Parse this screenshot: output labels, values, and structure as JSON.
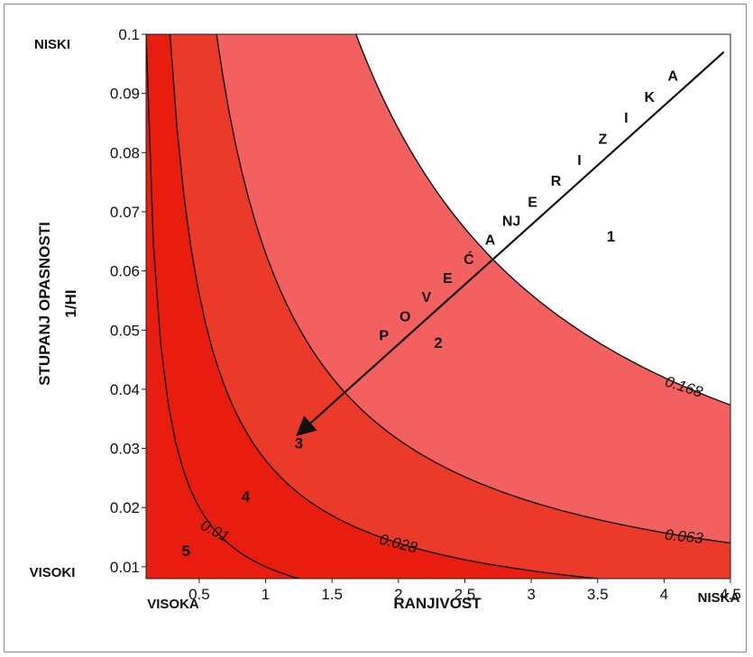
{
  "chart_data": {
    "type": "contour",
    "xlabel": "RANJIVOST",
    "ylabel_line1": "STUPANJ OPASNOSTI",
    "ylabel_line2": "1/HI",
    "x_corner_low": "VISOKA",
    "x_corner_high": "NISKA",
    "y_corner_high": "NISKI",
    "y_corner_low": "VISOKI",
    "xlim": [
      0.1,
      4.5
    ],
    "ylim": [
      0.008,
      0.1
    ],
    "x_ticks": [
      0.5,
      1,
      1.5,
      2,
      2.5,
      3,
      3.5,
      4,
      4.5
    ],
    "x_tick_labels": [
      "0.5",
      "1",
      "1.5",
      "2",
      "2.5",
      "3",
      "3.5",
      "4",
      "4.5"
    ],
    "y_ticks": [
      0.01,
      0.02,
      0.03,
      0.04,
      0.05,
      0.06,
      0.07,
      0.08,
      0.09,
      0.1
    ],
    "y_tick_labels": [
      "0.01",
      "0.02",
      "0.03",
      "0.04",
      "0.05",
      "0.06",
      "0.07",
      "0.08",
      "0.09",
      "0.1"
    ],
    "contours": [
      {
        "level": 0.01,
        "label": "0.01",
        "x": [
          0.1,
          0.2,
          0.35,
          0.5,
          0.7,
          0.9,
          1.1,
          1.3
        ],
        "y": [
          0.1,
          0.05,
          0.028,
          0.02,
          0.0143,
          0.0111,
          0.0091,
          0.0077
        ]
      },
      {
        "level": 0.028,
        "label": "0.028",
        "x": [
          0.28,
          0.4,
          0.6,
          0.8,
          1.0,
          1.3,
          1.7,
          2.2,
          2.8,
          3.5
        ],
        "y": [
          0.1,
          0.07,
          0.0467,
          0.035,
          0.028,
          0.0215,
          0.0165,
          0.0127,
          0.01,
          0.008
        ]
      },
      {
        "level": 0.063,
        "label": "0.063",
        "x": [
          0.63,
          0.8,
          1.0,
          1.3,
          1.6,
          2.0,
          2.5,
          3.0,
          3.5,
          4.0,
          4.5
        ],
        "y": [
          0.1,
          0.0788,
          0.063,
          0.0485,
          0.0394,
          0.0315,
          0.0252,
          0.021,
          0.018,
          0.0158,
          0.014
        ]
      },
      {
        "level": 0.168,
        "label": "0.168",
        "x": [
          1.68,
          2.0,
          2.3,
          2.6,
          3.0,
          3.4,
          3.8,
          4.2,
          4.5
        ],
        "y": [
          0.1,
          0.084,
          0.073,
          0.0646,
          0.056,
          0.0494,
          0.0442,
          0.04,
          0.0373
        ]
      }
    ],
    "zones": [
      {
        "label": "1",
        "fill": "#ffffff"
      },
      {
        "label": "2",
        "fill": "#f26060"
      },
      {
        "label": "3",
        "fill": "#ec3a2a"
      },
      {
        "label": "4",
        "fill": "#e81d10"
      },
      {
        "label": "5",
        "fill": "#e81d10"
      }
    ],
    "zone_label_points": [
      {
        "label": "1",
        "x": 3.6,
        "y": 0.065
      },
      {
        "label": "2",
        "x": 2.3,
        "y": 0.047
      },
      {
        "label": "3",
        "x": 1.25,
        "y": 0.03
      },
      {
        "label": "4",
        "x": 0.85,
        "y": 0.021
      },
      {
        "label": "5",
        "x": 0.4,
        "y": 0.0118
      }
    ],
    "arrow": {
      "from": [
        4.45,
        0.097
      ],
      "to": [
        1.25,
        0.0325
      ]
    },
    "arrow_text_lower": [
      "P",
      "O",
      "V",
      "E",
      "Ć",
      "A",
      "NJ",
      "E"
    ],
    "arrow_text_upper": [
      "R",
      "I",
      "Z",
      "I",
      "K",
      "A"
    ],
    "grid": false,
    "legend": "none"
  }
}
